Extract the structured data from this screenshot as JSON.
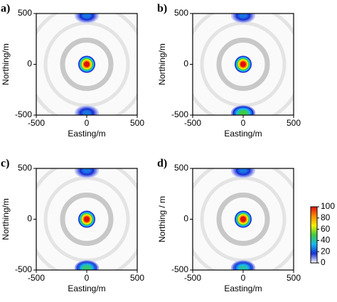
{
  "chart_data": [
    {
      "type": "heatmap",
      "label": "a)",
      "xlabel": "Easting/m",
      "ylabel": "Northing/m",
      "xlim": [
        -500,
        500
      ],
      "ylim": [
        -500,
        500
      ],
      "xticks": [
        -500,
        0,
        500
      ],
      "yticks": [
        -500,
        0,
        500
      ],
      "x": [
        0,
        0,
        0
      ],
      "y": [
        0,
        480,
        -480
      ],
      "values": [
        100,
        25,
        25
      ],
      "clim": [
        0,
        100
      ],
      "colorscale": [
        "#ffffff",
        "#1a2fd6",
        "#18b8f0",
        "#40cc40",
        "#f6f000",
        "#ff8a00",
        "#e01010"
      ]
    },
    {
      "type": "heatmap",
      "label": "b)",
      "xlabel": "Easting/m",
      "ylabel": "Northing/m",
      "xlim": [
        -500,
        500
      ],
      "ylim": [
        -500,
        500
      ],
      "xticks": [
        -500,
        0,
        500
      ],
      "yticks": [
        -500,
        0,
        500
      ],
      "x": [
        0,
        0,
        0
      ],
      "y": [
        0,
        480,
        -480
      ],
      "values": [
        100,
        25,
        50
      ],
      "clim": [
        0,
        100
      ],
      "colorscale": [
        "#ffffff",
        "#1a2fd6",
        "#18b8f0",
        "#40cc40",
        "#f6f000",
        "#ff8a00",
        "#e01010"
      ]
    },
    {
      "type": "heatmap",
      "label": "c)",
      "xlabel": "Easting/m",
      "ylabel": "Northing/m",
      "xlim": [
        -500,
        500
      ],
      "ylim": [
        -500,
        500
      ],
      "xticks": [
        -500,
        0,
        500
      ],
      "yticks": [
        -500,
        0,
        500
      ],
      "x": [
        0,
        0,
        0
      ],
      "y": [
        0,
        480,
        -480
      ],
      "values": [
        100,
        25,
        45
      ],
      "clim": [
        0,
        100
      ],
      "colorscale": [
        "#ffffff",
        "#1a2fd6",
        "#18b8f0",
        "#40cc40",
        "#f6f000",
        "#ff8a00",
        "#e01010"
      ]
    },
    {
      "type": "heatmap",
      "label": "d)",
      "xlabel": "Easting/m",
      "ylabel": "Northing / m",
      "xlim": [
        -500,
        500
      ],
      "ylim": [
        -500,
        500
      ],
      "xticks": [
        -500,
        0,
        500
      ],
      "yticks": [
        -500,
        0,
        500
      ],
      "x": [
        0,
        0,
        0
      ],
      "y": [
        0,
        480,
        -480
      ],
      "values": [
        100,
        25,
        40
      ],
      "clim": [
        0,
        100
      ],
      "colorscale": [
        "#ffffff",
        "#1a2fd6",
        "#18b8f0",
        "#40cc40",
        "#f6f000",
        "#ff8a00",
        "#e01010"
      ],
      "colorbar_ticks": [
        0,
        20,
        40,
        60,
        80,
        100
      ]
    }
  ]
}
